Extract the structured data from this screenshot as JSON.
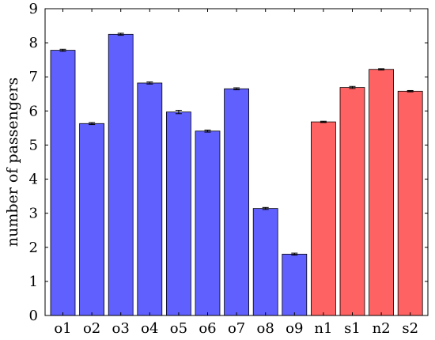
{
  "chart_data": {
    "type": "bar",
    "title": "",
    "xlabel": "",
    "ylabel": "number of passengers",
    "ylim": [
      0,
      9
    ],
    "yticks": [
      0,
      1,
      2,
      3,
      4,
      5,
      6,
      7,
      8,
      9
    ],
    "grid": false,
    "categories": [
      "o1",
      "o2",
      "o3",
      "o4",
      "o5",
      "o6",
      "o7",
      "o8",
      "o9",
      "n1",
      "s1",
      "n2",
      "s2"
    ],
    "values": [
      7.78,
      5.63,
      8.25,
      6.82,
      5.97,
      5.41,
      6.65,
      3.14,
      1.8,
      5.68,
      6.69,
      7.22,
      6.58
    ],
    "errors": [
      0.03,
      0.03,
      0.03,
      0.03,
      0.05,
      0.03,
      0.03,
      0.03,
      0.03,
      0.02,
      0.03,
      0.02,
      0.02
    ],
    "bar_colors": [
      "#6060ff",
      "#6060ff",
      "#6060ff",
      "#6060ff",
      "#6060ff",
      "#6060ff",
      "#6060ff",
      "#6060ff",
      "#6060ff",
      "#ff6262",
      "#ff6262",
      "#ff6262",
      "#ff6262"
    ],
    "error_bar_color": "#000000"
  }
}
